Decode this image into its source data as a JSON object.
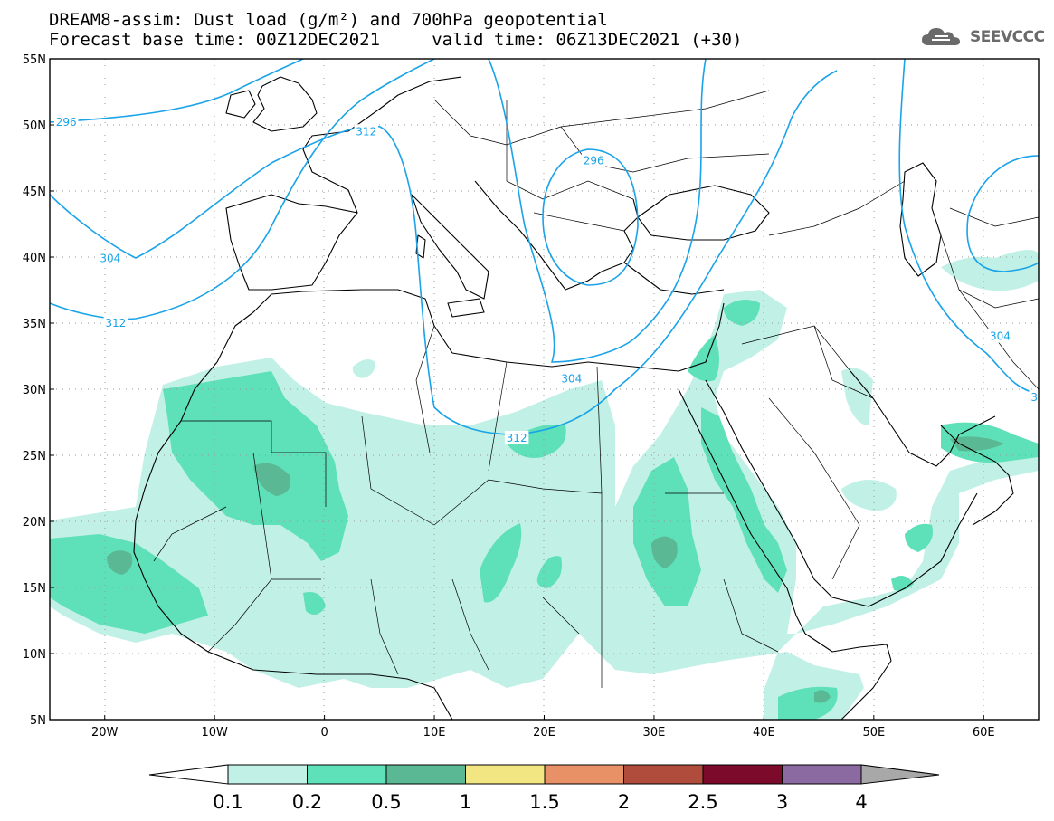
{
  "header": {
    "title_line1": "DREAM8-assim: Dust load (g/m²) and 700hPa geopotential",
    "title_line2": "Forecast base time: 00Z12DEC2021     valid time: 06Z13DEC2021 (+30)",
    "logo_text": "SEEVCCC",
    "logo_icon": "cloud-icon"
  },
  "map": {
    "lat_labels": [
      "55N",
      "50N",
      "45N",
      "40N",
      "35N",
      "30N",
      "25N",
      "20N",
      "15N",
      "10N",
      "5N"
    ],
    "lon_labels": [
      "20W",
      "10W",
      "0",
      "10E",
      "20E",
      "30E",
      "40E",
      "50E",
      "60E"
    ],
    "lon_range": [
      -25,
      65
    ],
    "lat_range": [
      5,
      55
    ],
    "gridlines": "dotted",
    "contour_color": "#1aa3e8",
    "contour_labels": [
      {
        "text": "296",
        "lon": -23.5,
        "lat": 50.2
      },
      {
        "text": "312",
        "lon": 3.8,
        "lat": 49.5
      },
      {
        "text": "296",
        "lon": 24.5,
        "lat": 47.3
      },
      {
        "text": "304",
        "lon": -19.5,
        "lat": 39.9
      },
      {
        "text": "312",
        "lon": -19,
        "lat": 35.0
      },
      {
        "text": "304",
        "lon": 22.5,
        "lat": 30.8
      },
      {
        "text": "312",
        "lon": 17.5,
        "lat": 26.3
      },
      {
        "text": "304",
        "lon": 61.5,
        "lat": 34.0
      },
      {
        "text": "3",
        "lon": 64.6,
        "lat": 29.4
      }
    ]
  },
  "colorbar": {
    "labels": [
      "0.1",
      "0.2",
      "0.5",
      "1",
      "1.5",
      "2",
      "2.5",
      "3",
      "4"
    ],
    "colors": [
      "#c1f1e6",
      "#5ee0b8",
      "#5bb894",
      "#f2e683",
      "#e89066",
      "#b04c3c",
      "#7c0a2a",
      "#8a6aa0"
    ],
    "under_color": "#ffffff",
    "over_color": "#a8a8a8"
  }
}
